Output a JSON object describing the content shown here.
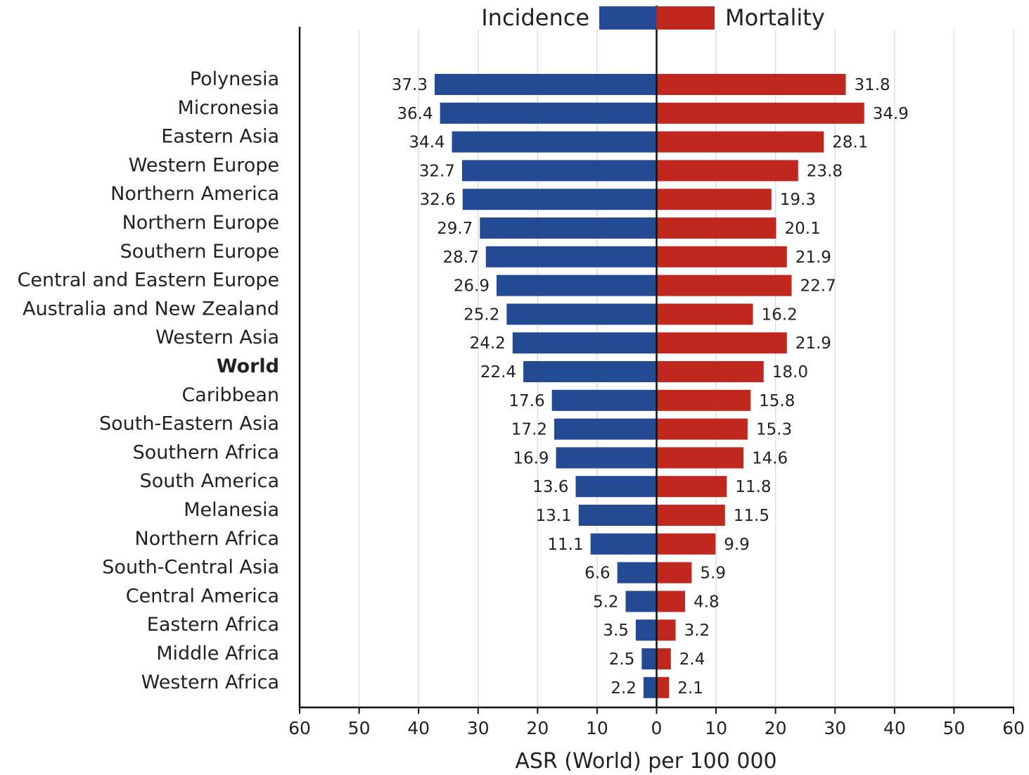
{
  "chart_data": {
    "type": "bar",
    "orientation": "horizontal-diverging",
    "xlabel": "ASR (World) per 100 000",
    "xlim": [
      -60,
      60
    ],
    "xticks": [
      60,
      50,
      40,
      30,
      20,
      10,
      0,
      10,
      20,
      30,
      40,
      50,
      60
    ],
    "grid": true,
    "legend_position": "top-center",
    "categories": [
      "Polynesia",
      "Micronesia",
      "Eastern Asia",
      "Western Europe",
      "Northern America",
      "Northern Europe",
      "Southern Europe",
      "Central and Eastern Europe",
      "Australia and New Zealand",
      "Western Asia",
      "World",
      "Caribbean",
      "South-Eastern Asia",
      "Southern Africa",
      "South America",
      "Melanesia",
      "Northern Africa",
      "South-Central Asia",
      "Central America",
      "Eastern Africa",
      "Middle Africa",
      "Western Africa"
    ],
    "highlight_category": "World",
    "series": [
      {
        "name": "Incidence",
        "side": "left",
        "color": "#234a93",
        "values": [
          37.3,
          36.4,
          34.4,
          32.7,
          32.6,
          29.7,
          28.7,
          26.9,
          25.2,
          24.2,
          22.4,
          17.6,
          17.2,
          16.9,
          13.6,
          13.1,
          11.1,
          6.6,
          5.2,
          3.5,
          2.5,
          2.2
        ],
        "value_labels": [
          "37.3",
          "36.4",
          "34.4",
          "32.7",
          "32.6",
          "29.7",
          "28.7",
          "26.9",
          "25.2",
          "24.2",
          "22.4",
          "17.6",
          "17.2",
          "16.9",
          "13.6",
          "13.1",
          "11.1",
          "6.6",
          "5.2",
          "3.5",
          "2.5",
          "2.2"
        ]
      },
      {
        "name": "Mortality",
        "side": "right",
        "color": "#c0281f",
        "values": [
          31.8,
          34.9,
          28.1,
          23.8,
          19.3,
          20.1,
          21.9,
          22.7,
          16.2,
          21.9,
          18.0,
          15.8,
          15.3,
          14.6,
          11.8,
          11.5,
          9.9,
          5.9,
          4.8,
          3.2,
          2.4,
          2.1
        ],
        "value_labels": [
          "31.8",
          "34.9",
          "28.1",
          "23.8",
          "19.3",
          "20.1",
          "21.9",
          "22.7",
          "16.2",
          "21.9",
          "18.0",
          "15.8",
          "15.3",
          "14.6",
          "11.8",
          "11.5",
          "9.9",
          "5.9",
          "4.8",
          "3.2",
          "2.4",
          "2.1"
        ]
      }
    ]
  }
}
